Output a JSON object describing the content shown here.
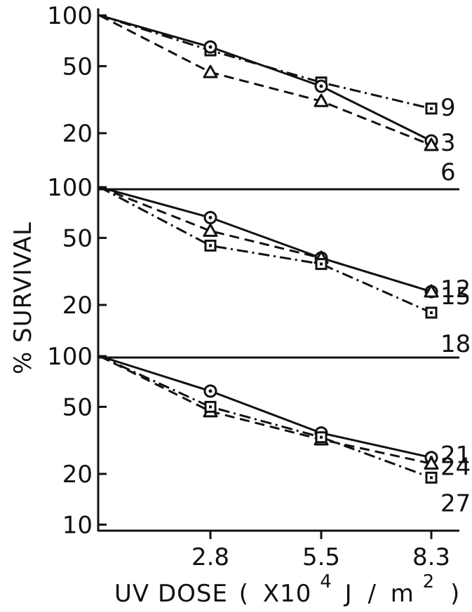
{
  "chart_data": {
    "type": "line",
    "ylabel": "% SURVIVAL",
    "xlabel": {
      "main": "UV DOSE",
      "open_paren": "(",
      "times": "X10",
      "exponent": "4",
      "unit": "J",
      "slash": "/",
      "unit2": "m",
      "unit2_exponent": "2",
      "close_paren": ")"
    },
    "x_values": [
      0,
      2.8,
      5.5,
      8.3
    ],
    "x_tick_labels": [
      "2.8",
      "5.5",
      "8.3"
    ],
    "xlim": [
      0,
      8.3
    ],
    "y_scale": "log",
    "ylim": [
      10,
      100
    ],
    "y_ticks_top_panels": [
      "100",
      "50",
      "20"
    ],
    "y_ticks_bottom_panel": [
      "100",
      "50",
      "20",
      "10"
    ],
    "grid": false,
    "color": "#111111",
    "panels": [
      {
        "series": [
          {
            "label": "9",
            "marker": "square",
            "line": "dash-dot",
            "values": [
              100,
              62,
              40,
              28
            ]
          },
          {
            "label": "3",
            "marker": "circle",
            "line": "solid",
            "values": [
              100,
              65,
              38,
              18
            ]
          },
          {
            "label": "6",
            "marker": "triangle",
            "line": "dashed",
            "values": [
              100,
              46,
              31,
              17
            ]
          }
        ]
      },
      {
        "series": [
          {
            "label": "12",
            "marker": "circle",
            "line": "solid",
            "values": [
              100,
              66,
              38,
              24
            ]
          },
          {
            "label": "15",
            "marker": "triangle",
            "line": "dashed",
            "values": [
              100,
              55,
              38,
              24
            ]
          },
          {
            "label": "18",
            "marker": "square",
            "line": "dash-dot",
            "values": [
              100,
              45,
              35,
              18
            ]
          }
        ]
      },
      {
        "series": [
          {
            "label": "21",
            "marker": "circle",
            "line": "solid",
            "values": [
              100,
              62,
              35,
              25
            ]
          },
          {
            "label": "24",
            "marker": "triangle",
            "line": "dashed",
            "values": [
              100,
              47,
              32,
              23
            ]
          },
          {
            "label": "27",
            "marker": "square",
            "line": "dash-dot",
            "values": [
              100,
              50,
              33,
              19
            ]
          }
        ]
      }
    ]
  }
}
